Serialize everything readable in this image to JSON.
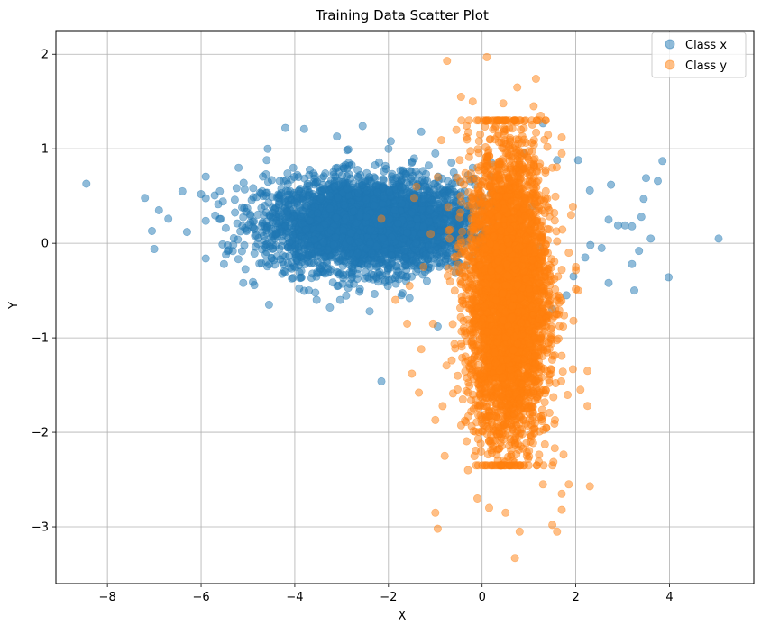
{
  "chart_data": {
    "type": "scatter",
    "title": "Training Data Scatter Plot",
    "xlabel": "X",
    "ylabel": "Y",
    "xlim": [
      -9.1,
      5.8
    ],
    "ylim": [
      -3.6,
      2.25
    ],
    "xticks": [
      -8,
      -6,
      -4,
      -2,
      0,
      2,
      4
    ],
    "yticks": [
      -3,
      -2,
      -1,
      0,
      1,
      2
    ],
    "xtick_labels": [
      "−8",
      "−6",
      "−4",
      "−2",
      "0",
      "2",
      "4"
    ],
    "ytick_labels": [
      "−3",
      "−2",
      "−1",
      "0",
      "1",
      "2"
    ],
    "grid": true,
    "legend_position": "top-right",
    "marker_alpha": 0.5,
    "series": [
      {
        "name": "Class x",
        "color": "#1f77b4",
        "points": [
          [
            -8.45,
            0.63
          ],
          [
            -7.2,
            0.48
          ],
          [
            -6.9,
            0.35
          ],
          [
            -7.05,
            0.13
          ],
          [
            -7.0,
            -0.06
          ],
          [
            -6.7,
            0.26
          ],
          [
            -6.4,
            0.55
          ],
          [
            -6.3,
            0.12
          ],
          [
            -6.0,
            0.52
          ],
          [
            -5.6,
            0.55
          ],
          [
            -5.2,
            0.8
          ],
          [
            -4.6,
            0.88
          ],
          [
            -4.2,
            1.22
          ],
          [
            -3.8,
            1.21
          ],
          [
            -2.55,
            1.24
          ],
          [
            -3.1,
            1.13
          ],
          [
            -1.95,
            1.08
          ],
          [
            -1.3,
            1.18
          ],
          [
            -5.1,
            -0.42
          ],
          [
            -4.55,
            -0.65
          ],
          [
            -3.7,
            -0.5
          ],
          [
            -3.25,
            -0.68
          ],
          [
            -2.4,
            -0.72
          ],
          [
            -1.55,
            -0.58
          ],
          [
            -0.95,
            -0.88
          ],
          [
            -2.15,
            -1.46
          ],
          [
            -0.7,
            -0.1
          ],
          [
            -0.3,
            0.72
          ],
          [
            0.2,
            0.85
          ],
          [
            0.9,
            0.95
          ],
          [
            1.3,
            1.27
          ],
          [
            1.6,
            0.88
          ],
          [
            2.05,
            0.88
          ],
          [
            2.3,
            0.56
          ],
          [
            2.7,
            0.25
          ],
          [
            2.9,
            0.19
          ],
          [
            3.05,
            0.19
          ],
          [
            3.2,
            0.18
          ],
          [
            3.6,
            0.05
          ],
          [
            3.45,
            0.47
          ],
          [
            3.5,
            0.69
          ],
          [
            3.75,
            0.66
          ],
          [
            3.85,
            0.87
          ],
          [
            3.35,
            -0.08
          ],
          [
            3.25,
            -0.5
          ],
          [
            3.2,
            -0.22
          ],
          [
            2.7,
            -0.42
          ],
          [
            2.55,
            -0.05
          ],
          [
            2.2,
            -0.15
          ],
          [
            1.95,
            -0.35
          ],
          [
            3.98,
            -0.36
          ],
          [
            5.05,
            0.05
          ],
          [
            2.75,
            0.62
          ],
          [
            3.4,
            0.28
          ],
          [
            1.8,
            -0.55
          ],
          [
            1.5,
            -0.7
          ],
          [
            1.0,
            -0.5
          ],
          [
            0.6,
            0.6
          ],
          [
            -0.2,
            0.8
          ],
          [
            -1.0,
            0.95
          ]
        ],
        "cluster": {
          "count": 3800,
          "x_mean": -2.4,
          "x_std": 1.1,
          "y_mean": 0.2,
          "y_std": 0.24,
          "x_range": [
            -5.9,
            2.4
          ],
          "y_range": [
            -0.6,
            1.0
          ]
        }
      },
      {
        "name": "Class y",
        "color": "#ff7f0e",
        "points": [
          [
            -0.75,
            1.93
          ],
          [
            0.1,
            1.97
          ],
          [
            1.15,
            1.74
          ],
          [
            0.75,
            1.65
          ],
          [
            -0.45,
            1.55
          ],
          [
            -0.2,
            1.5
          ],
          [
            0.45,
            1.48
          ],
          [
            1.1,
            1.45
          ],
          [
            1.25,
            1.35
          ],
          [
            -0.55,
            1.2
          ],
          [
            1.7,
            1.12
          ],
          [
            1.7,
            0.95
          ],
          [
            -0.95,
            0.7
          ],
          [
            -1.4,
            0.6
          ],
          [
            -1.45,
            0.48
          ],
          [
            -2.15,
            0.26
          ],
          [
            -1.1,
            0.1
          ],
          [
            -1.25,
            -0.25
          ],
          [
            -1.55,
            -0.45
          ],
          [
            -1.85,
            -0.6
          ],
          [
            -1.6,
            -0.85
          ],
          [
            -1.05,
            -0.85
          ],
          [
            -1.3,
            -1.12
          ],
          [
            -1.5,
            -1.38
          ],
          [
            -1.35,
            -1.58
          ],
          [
            -1.0,
            -1.87
          ],
          [
            -0.8,
            -2.25
          ],
          [
            -1.0,
            -2.85
          ],
          [
            -0.95,
            -3.02
          ],
          [
            0.15,
            -2.8
          ],
          [
            -0.1,
            -2.7
          ],
          [
            0.5,
            -2.85
          ],
          [
            0.8,
            -3.05
          ],
          [
            0.7,
            -3.33
          ],
          [
            1.6,
            -3.05
          ],
          [
            1.5,
            -2.98
          ],
          [
            1.7,
            -2.82
          ],
          [
            1.85,
            -2.55
          ],
          [
            1.7,
            -2.65
          ],
          [
            2.3,
            -2.57
          ],
          [
            2.25,
            -1.72
          ],
          [
            2.1,
            -1.55
          ],
          [
            2.25,
            -1.35
          ],
          [
            1.95,
            -0.82
          ],
          [
            2.05,
            -0.5
          ],
          [
            2.0,
            -0.25
          ],
          [
            1.85,
            -0.1
          ],
          [
            1.9,
            0.3
          ],
          [
            -0.3,
            -2.4
          ],
          [
            1.3,
            -2.55
          ],
          [
            0.3,
            -1.95
          ],
          [
            1.5,
            0.8
          ],
          [
            -0.6,
            -0.3
          ],
          [
            -0.3,
            0.4
          ]
        ],
        "cluster": {
          "count": 4200,
          "x_mean": 0.55,
          "x_std": 0.42,
          "y_mean": -0.55,
          "y_std": 0.78,
          "x_range": [
            -0.9,
            2.0
          ],
          "y_range": [
            -2.35,
            1.3
          ]
        }
      }
    ]
  }
}
